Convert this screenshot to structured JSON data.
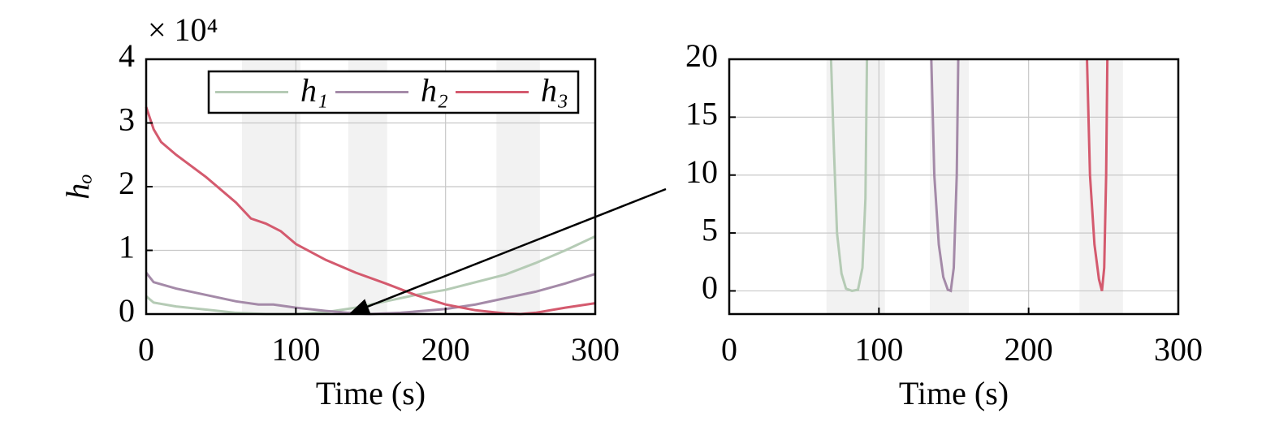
{
  "chart_data": [
    {
      "type": "line",
      "xlabel": "Time (s)",
      "ylabel": "hₒ",
      "y_multiplier_label": "× 10⁴",
      "xlim": [
        0,
        300
      ],
      "xticks": [
        0,
        100,
        200,
        300
      ],
      "ylim": [
        0,
        4
      ],
      "yticks": [
        0,
        1,
        2,
        3,
        4
      ],
      "grid": true,
      "legend": "upper right",
      "shade_color": "#f2f2f2",
      "shaded_regions": [
        [
          64,
          103
        ],
        [
          135,
          161
        ],
        [
          234,
          263
        ]
      ],
      "series": [
        {
          "name": "h₁",
          "color": "#b5cbb5",
          "x": [
            0,
            5,
            20,
            40,
            60,
            80,
            100,
            120,
            140,
            160,
            180,
            200,
            220,
            240,
            260,
            280,
            300
          ],
          "values": [
            0.28,
            0.18,
            0.12,
            0.07,
            0.02,
            0.0,
            0.0,
            0.03,
            0.1,
            0.2,
            0.3,
            0.38,
            0.5,
            0.62,
            0.8,
            1.0,
            1.22
          ]
        },
        {
          "name": "h₂",
          "color": "#a48aa8",
          "x": [
            0,
            5,
            20,
            40,
            60,
            75,
            85,
            100,
            120,
            140,
            150,
            170,
            200,
            220,
            240,
            260,
            280,
            300
          ],
          "values": [
            0.65,
            0.5,
            0.4,
            0.3,
            0.2,
            0.15,
            0.15,
            0.1,
            0.05,
            0.01,
            0.0,
            0.02,
            0.08,
            0.15,
            0.25,
            0.35,
            0.48,
            0.63
          ]
        },
        {
          "name": "h₃",
          "color": "#d45a6e",
          "x": [
            0,
            5,
            10,
            20,
            40,
            60,
            70,
            80,
            90,
            100,
            120,
            140,
            160,
            180,
            200,
            220,
            240,
            250,
            260,
            280,
            300
          ],
          "values": [
            3.25,
            2.9,
            2.7,
            2.5,
            2.15,
            1.75,
            1.5,
            1.42,
            1.3,
            1.1,
            0.85,
            0.65,
            0.48,
            0.3,
            0.15,
            0.06,
            0.01,
            0.0,
            0.02,
            0.1,
            0.17
          ]
        }
      ]
    },
    {
      "type": "line",
      "xlabel": "Time (s)",
      "xlim": [
        0,
        300
      ],
      "xticks": [
        0,
        100,
        200,
        300
      ],
      "ylim": [
        -2,
        20
      ],
      "yticks": [
        0,
        5,
        10,
        15,
        20
      ],
      "grid": true,
      "shade_color": "#f2f2f2",
      "shaded_regions": [
        [
          65,
          104
        ],
        [
          134,
          160
        ],
        [
          234,
          263
        ]
      ],
      "series": [
        {
          "color": "#b5cbb5",
          "x": [
            68,
            70,
            72,
            75,
            78,
            82,
            86,
            89,
            91,
            92
          ],
          "values": [
            20,
            12,
            5,
            1.5,
            0.2,
            0,
            0.1,
            2,
            8,
            20
          ]
        },
        {
          "color": "#a48aa8",
          "x": [
            135,
            137,
            140,
            143,
            146,
            148,
            150,
            152,
            153
          ],
          "values": [
            20,
            10,
            4,
            1.2,
            0.1,
            0,
            2,
            10,
            20
          ]
        },
        {
          "color": "#d45a6e",
          "x": [
            239,
            241,
            244,
            247,
            249,
            250.5,
            251.8,
            252.6
          ],
          "values": [
            20,
            10,
            4,
            1,
            0,
            2,
            10,
            20
          ]
        }
      ]
    }
  ]
}
